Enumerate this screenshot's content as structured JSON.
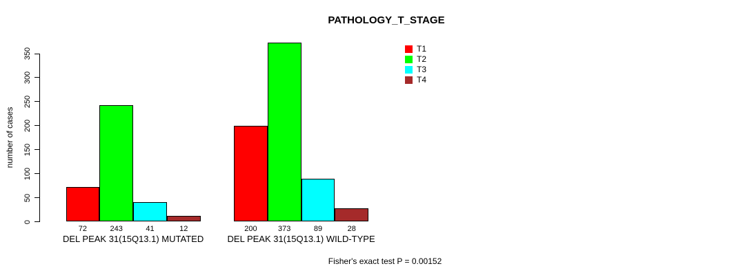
{
  "chart_data": {
    "type": "bar",
    "title": "PATHOLOGY_T_STAGE",
    "xlabel": "",
    "ylabel": "number of cases",
    "ylim": [
      0,
      350
    ],
    "yticks": [
      0,
      50,
      100,
      150,
      200,
      250,
      300,
      350
    ],
    "grid": false,
    "legend_position": "top-right",
    "categories": [
      "DEL PEAK 31(15Q13.1) MUTATED",
      "DEL PEAK 31(15Q13.1) WILD-TYPE"
    ],
    "series": [
      {
        "name": "T1",
        "color": "#FF0000",
        "values": [
          72,
          200
        ]
      },
      {
        "name": "T2",
        "color": "#00FF00",
        "values": [
          243,
          373
        ]
      },
      {
        "name": "T3",
        "color": "#00FFFF",
        "values": [
          41,
          89
        ]
      },
      {
        "name": "T4",
        "color": "#A52A2A",
        "values": [
          12,
          28
        ]
      }
    ],
    "bar_value_labels": [
      [
        "72",
        "243",
        "41",
        "12"
      ],
      [
        "200",
        "373",
        "89",
        "28"
      ]
    ],
    "annotation": "Fisher's exact test P = 0.00152"
  }
}
